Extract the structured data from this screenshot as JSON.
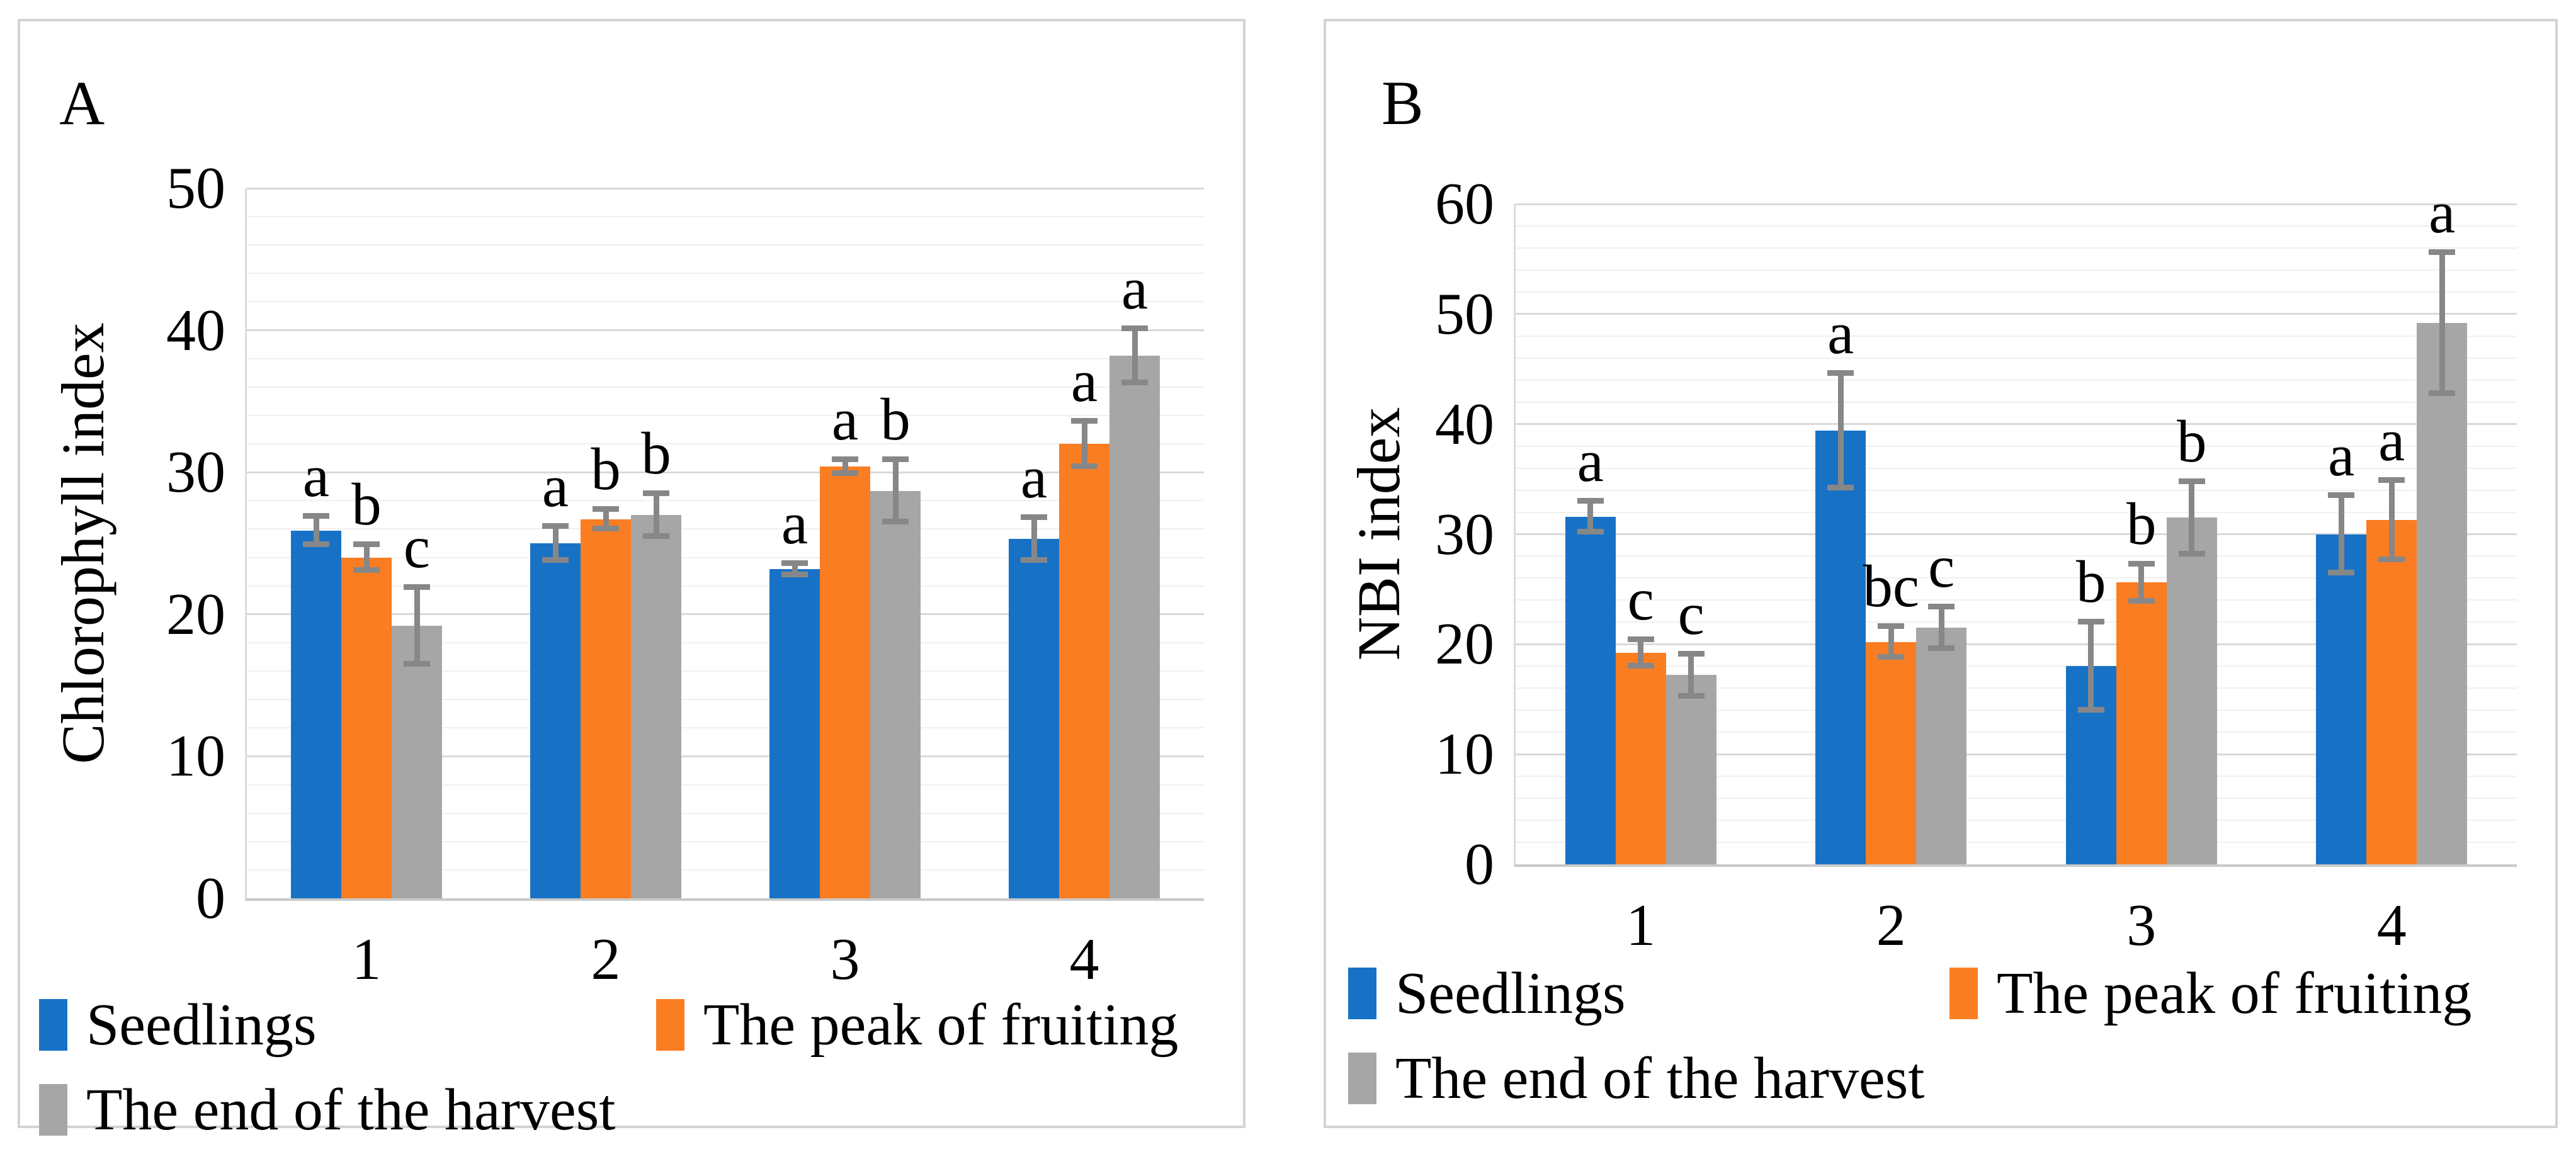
{
  "figure": {
    "description": "Two-panel bar chart figure",
    "colors": {
      "seedlings_blue": "#1772C6",
      "fruiting_orange": "#FB7D22",
      "harvest_gray": "#A6A6A6",
      "error_bar": "#878787",
      "grid_major": "#D9D9D9",
      "grid_minor": "#F0F0F0",
      "panel_border": "#D3D3D3"
    }
  },
  "chart_data": [
    {
      "type": "bar",
      "panel_label": "A",
      "ylabel": "Chlorophyll index",
      "categories": [
        "1",
        "2",
        "3",
        "4"
      ],
      "yticks": [
        "0",
        "10",
        "20",
        "30",
        "40",
        "50"
      ],
      "ylim": [
        0,
        50
      ],
      "major_unit": 10,
      "minor_unit": 2,
      "grid": true,
      "legend_position": "bottom",
      "series": [
        {
          "name": "Seedlings",
          "color": "#1772C6",
          "values": [
            25.9,
            25.0,
            23.2,
            25.3
          ],
          "errors": [
            1.0,
            1.2,
            0.4,
            1.5
          ],
          "letters": [
            "a",
            "a",
            "a",
            "a"
          ]
        },
        {
          "name": "The peak of fruiting",
          "color": "#FB7D22",
          "values": [
            24.0,
            26.7,
            30.4,
            32.0
          ],
          "errors": [
            0.9,
            0.7,
            0.5,
            1.6
          ],
          "letters": [
            "b",
            "b",
            "a",
            "a"
          ]
        },
        {
          "name": "The end of the harvest",
          "color": "#A6A6A6",
          "values": [
            19.2,
            27.0,
            28.7,
            38.2
          ],
          "errors": [
            2.7,
            1.5,
            2.2,
            1.9
          ],
          "letters": [
            "c",
            "b",
            "b",
            "a"
          ]
        }
      ]
    },
    {
      "type": "bar",
      "panel_label": "B",
      "ylabel": "NBI index",
      "categories": [
        "1",
        "2",
        "3",
        "4"
      ],
      "yticks": [
        "0",
        "10",
        "20",
        "30",
        "40",
        "50",
        "60"
      ],
      "ylim": [
        0,
        60
      ],
      "major_unit": 10,
      "minor_unit": 2,
      "grid": true,
      "legend_position": "bottom",
      "series": [
        {
          "name": "Seedlings",
          "color": "#1772C6",
          "values": [
            31.6,
            39.4,
            18.0,
            30.0
          ],
          "errors": [
            1.4,
            5.2,
            4.0,
            3.5
          ],
          "letters": [
            "a",
            "a",
            "b",
            "a"
          ]
        },
        {
          "name": "The peak of fruiting",
          "color": "#FB7D22",
          "values": [
            19.2,
            20.2,
            25.6,
            31.3
          ],
          "errors": [
            1.2,
            1.4,
            1.7,
            3.6
          ],
          "letters": [
            "c",
            "bc",
            "b",
            "a"
          ]
        },
        {
          "name": "The end of the harvest",
          "color": "#A6A6A6",
          "values": [
            17.2,
            21.5,
            31.5,
            49.2
          ],
          "errors": [
            1.9,
            1.9,
            3.3,
            6.4
          ],
          "letters": [
            "c",
            "c",
            "b",
            "a"
          ]
        }
      ]
    }
  ]
}
